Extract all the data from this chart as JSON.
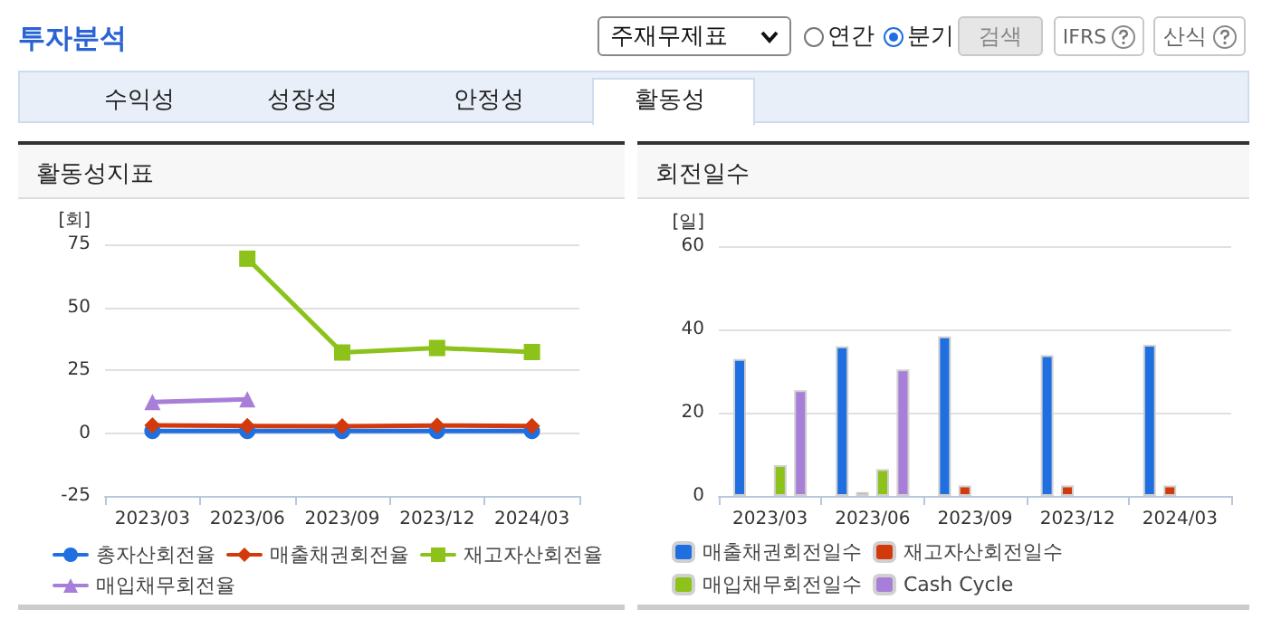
{
  "chart_data": [
    {
      "type": "other",
      "title": "투자분석",
      "annotations": [
        "주재무제표",
        "연간",
        "분기",
        "검색",
        "IFRS",
        "산식",
        "수익성",
        "성장성",
        "안정성",
        "활동성"
      ]
    },
    {
      "type": "line",
      "title": "활동성지표",
      "ylabel": "[회]",
      "categories": [
        "2023/03",
        "2023/06",
        "2023/09",
        "2023/12",
        "2024/03"
      ],
      "ylim": [
        -25,
        75
      ],
      "yticks": [
        -25,
        0,
        25,
        50,
        75
      ],
      "grid": "y",
      "legend": "bottom",
      "line_style": "solid",
      "series": [
        {
          "name": "총자산회전율",
          "color": "#1f6fe0",
          "marker": "circle",
          "values": [
            0.8,
            0.8,
            0.8,
            0.8,
            0.8
          ]
        },
        {
          "name": "매출채권회전율",
          "color": "#d23a0e",
          "marker": "diamond",
          "values": [
            3.1,
            2.8,
            2.7,
            3.0,
            2.8
          ]
        },
        {
          "name": "재고자산회전율",
          "color": "#8cc21a",
          "marker": "square",
          "values": [
            null,
            69.3,
            32,
            33.8,
            32.2
          ]
        },
        {
          "name": "매입채무회전율",
          "color": "#a87fd8",
          "marker": "triangle",
          "values": [
            12.3,
            13.4,
            null,
            null,
            null
          ]
        }
      ]
    },
    {
      "type": "bar",
      "title": "회전일수",
      "ylabel": "[일]",
      "categories": [
        "2023/03",
        "2023/06",
        "2023/09",
        "2023/12",
        "2024/03"
      ],
      "ylim": [
        0,
        60
      ],
      "yticks": [
        0,
        20,
        40,
        60
      ],
      "grid": "y",
      "legend": "bottom",
      "series": [
        {
          "name": "매출채권회전일수",
          "color": "#1f6fe0",
          "values": [
            32.9,
            35.9,
            38.3,
            33.8,
            36.3
          ]
        },
        {
          "name": "재고자산회전일수",
          "color": "#d23a0e",
          "values": [
            null,
            0.9,
            2.5,
            2.5,
            2.5
          ]
        },
        {
          "name": "매입채무회전일수",
          "color": "#8cc21a",
          "values": [
            7.4,
            6.4,
            null,
            null,
            null
          ]
        },
        {
          "name": "Cash Cycle",
          "color": "#a87fd8",
          "values": [
            25.4,
            30.4,
            null,
            null,
            null
          ]
        }
      ]
    }
  ]
}
